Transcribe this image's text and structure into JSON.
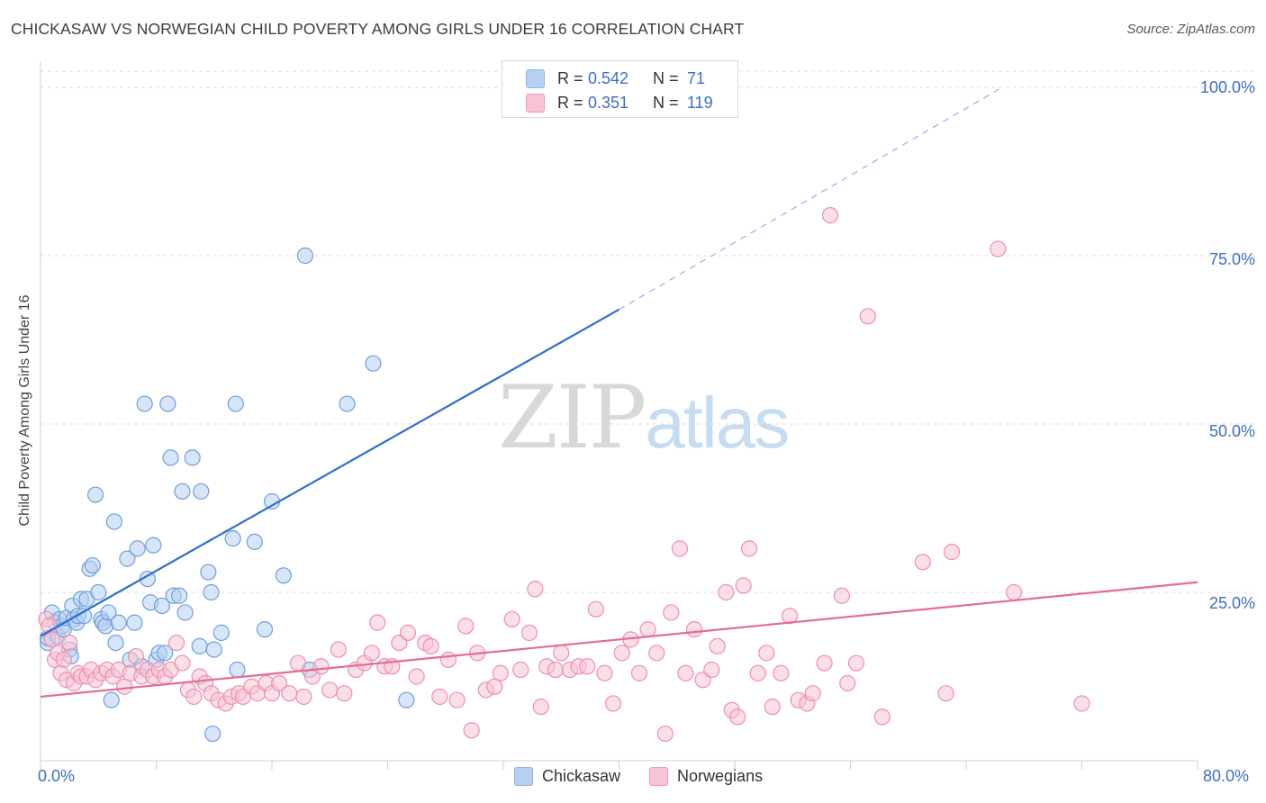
{
  "title": "CHICKASAW VS NORWEGIAN CHILD POVERTY AMONG GIRLS UNDER 16 CORRELATION CHART",
  "source": "Source: ZipAtlas.com",
  "watermark": {
    "part1": "ZIP",
    "part2": "atlas"
  },
  "legend": {
    "rows": [
      {
        "r_label": "R =",
        "r_value": "0.542",
        "n_label": "N =",
        "n_value": "71",
        "color": "#a9c8f0"
      },
      {
        "r_label": "R =",
        "r_value": "0.351",
        "n_label": "N =",
        "n_value": "119",
        "color": "#f6b8cc"
      }
    ]
  },
  "chart_data": {
    "type": "scatter",
    "title": "CHICKASAW VS NORWEGIAN CHILD POVERTY AMONG GIRLS UNDER 16 CORRELATION CHART",
    "xlabel": "",
    "ylabel": "Child Poverty Among Girls Under 16",
    "xlim": [
      0,
      80
    ],
    "ylim": [
      0,
      100
    ],
    "x_tick_labels": [
      "0.0%",
      "80.0%"
    ],
    "y_tick_labels": [
      "25.0%",
      "50.0%",
      "75.0%",
      "100.0%"
    ],
    "y_ticks": [
      25,
      50,
      75,
      100
    ],
    "grid": "horizontal dashed",
    "legend_position": "bottom-center",
    "series": [
      {
        "name": "Chickasaw",
        "color": "#6e9fdf",
        "fill": "#b6d0f2",
        "trend": {
          "x0": 0,
          "y0": 18.5,
          "x1": 40,
          "y1": 67.0,
          "dash_to_x": 66.5,
          "dash_to_y": 100
        },
        "points": [
          [
            0.5,
            17.5
          ],
          [
            0.5,
            18.2
          ],
          [
            0.8,
            22
          ],
          [
            1.0,
            20.5
          ],
          [
            1.2,
            18.5
          ],
          [
            1.3,
            21
          ],
          [
            1.5,
            20
          ],
          [
            1.6,
            19.5
          ],
          [
            1.8,
            21.2
          ],
          [
            2.0,
            16.5
          ],
          [
            2.1,
            15.5
          ],
          [
            2.2,
            23
          ],
          [
            2.3,
            21
          ],
          [
            2.5,
            20.5
          ],
          [
            2.6,
            21.5
          ],
          [
            2.8,
            24
          ],
          [
            3.0,
            21.5
          ],
          [
            3.2,
            24
          ],
          [
            3.4,
            28.5
          ],
          [
            3.6,
            29
          ],
          [
            3.8,
            39.5
          ],
          [
            4.0,
            25
          ],
          [
            4.2,
            21
          ],
          [
            4.3,
            20.5
          ],
          [
            4.5,
            20
          ],
          [
            4.7,
            22
          ],
          [
            4.9,
            9
          ],
          [
            5.1,
            35.5
          ],
          [
            5.2,
            17.5
          ],
          [
            5.4,
            20.5
          ],
          [
            6.0,
            30
          ],
          [
            6.2,
            15
          ],
          [
            6.5,
            20.5
          ],
          [
            6.7,
            31.5
          ],
          [
            7.0,
            14
          ],
          [
            7.2,
            53
          ],
          [
            7.4,
            27
          ],
          [
            7.6,
            23.5
          ],
          [
            7.8,
            32
          ],
          [
            8.0,
            15
          ],
          [
            8.2,
            16
          ],
          [
            8.4,
            23
          ],
          [
            8.6,
            16
          ],
          [
            8.8,
            53
          ],
          [
            9.0,
            45
          ],
          [
            9.2,
            24.5
          ],
          [
            9.6,
            24.5
          ],
          [
            9.8,
            40
          ],
          [
            10.0,
            22
          ],
          [
            10.5,
            45
          ],
          [
            11.0,
            17
          ],
          [
            11.1,
            40
          ],
          [
            11.6,
            28
          ],
          [
            11.8,
            25
          ],
          [
            11.9,
            4
          ],
          [
            12.0,
            16.5
          ],
          [
            12.5,
            19
          ],
          [
            13.3,
            33
          ],
          [
            13.5,
            53
          ],
          [
            13.6,
            13.5
          ],
          [
            14.8,
            32.5
          ],
          [
            15.5,
            19.5
          ],
          [
            16.0,
            38.5
          ],
          [
            16.8,
            27.5
          ],
          [
            18.3,
            75
          ],
          [
            18.6,
            13.5
          ],
          [
            21.2,
            53
          ],
          [
            23.0,
            59
          ],
          [
            25.3,
            9
          ]
        ]
      },
      {
        "name": "Norwegians",
        "color": "#ee8fae",
        "fill": "#f8c4d4",
        "trend": {
          "x0": 0,
          "y0": 9.5,
          "x1": 80,
          "y1": 26.5
        },
        "points": [
          [
            0.4,
            21
          ],
          [
            0.6,
            20
          ],
          [
            0.8,
            18
          ],
          [
            1.0,
            15
          ],
          [
            1.2,
            16
          ],
          [
            1.4,
            13
          ],
          [
            1.6,
            15
          ],
          [
            1.8,
            12
          ],
          [
            2.0,
            17.5
          ],
          [
            2.3,
            11.5
          ],
          [
            2.6,
            13
          ],
          [
            2.8,
            12.5
          ],
          [
            3.2,
            12.5
          ],
          [
            3.5,
            13.5
          ],
          [
            3.8,
            12
          ],
          [
            4.2,
            13
          ],
          [
            4.6,
            13.5
          ],
          [
            5.0,
            12.5
          ],
          [
            5.4,
            13.5
          ],
          [
            5.8,
            11
          ],
          [
            6.2,
            13
          ],
          [
            6.6,
            15.5
          ],
          [
            7.0,
            12.5
          ],
          [
            7.4,
            13.5
          ],
          [
            7.8,
            12.5
          ],
          [
            8.2,
            13.5
          ],
          [
            8.6,
            12.5
          ],
          [
            9.0,
            13.5
          ],
          [
            9.4,
            17.5
          ],
          [
            9.8,
            14.5
          ],
          [
            10.2,
            10.5
          ],
          [
            10.6,
            9.5
          ],
          [
            11.0,
            12.5
          ],
          [
            11.4,
            11.5
          ],
          [
            11.8,
            10
          ],
          [
            12.3,
            9
          ],
          [
            12.8,
            8.5
          ],
          [
            13.2,
            9.5
          ],
          [
            13.7,
            10
          ],
          [
            14.0,
            9.5
          ],
          [
            14.6,
            11
          ],
          [
            15.0,
            10
          ],
          [
            15.6,
            11.5
          ],
          [
            16.0,
            10
          ],
          [
            16.5,
            11.5
          ],
          [
            17.2,
            10
          ],
          [
            17.8,
            14.5
          ],
          [
            18.2,
            9.5
          ],
          [
            18.8,
            12.5
          ],
          [
            19.4,
            14
          ],
          [
            20.0,
            10.5
          ],
          [
            20.6,
            16.5
          ],
          [
            21.0,
            10
          ],
          [
            21.8,
            13.5
          ],
          [
            22.4,
            14.5
          ],
          [
            22.9,
            16
          ],
          [
            23.3,
            20.5
          ],
          [
            23.8,
            14
          ],
          [
            24.3,
            14
          ],
          [
            24.8,
            17.5
          ],
          [
            25.4,
            19
          ],
          [
            26.0,
            12.5
          ],
          [
            26.6,
            17.5
          ],
          [
            27.0,
            17
          ],
          [
            27.6,
            9.5
          ],
          [
            28.2,
            15
          ],
          [
            28.8,
            9
          ],
          [
            29.4,
            20
          ],
          [
            29.8,
            4.5
          ],
          [
            30.2,
            16
          ],
          [
            30.8,
            10.5
          ],
          [
            31.4,
            11
          ],
          [
            31.8,
            13
          ],
          [
            32.6,
            21
          ],
          [
            33.2,
            13.5
          ],
          [
            33.8,
            19
          ],
          [
            34.2,
            25.5
          ],
          [
            34.6,
            8
          ],
          [
            35.0,
            14
          ],
          [
            35.6,
            13.5
          ],
          [
            36.0,
            16
          ],
          [
            36.6,
            13.5
          ],
          [
            37.2,
            14
          ],
          [
            37.8,
            14
          ],
          [
            38.4,
            22.5
          ],
          [
            39.0,
            13
          ],
          [
            39.6,
            8.5
          ],
          [
            40.2,
            16
          ],
          [
            40.8,
            18
          ],
          [
            41.4,
            13
          ],
          [
            42.0,
            19.5
          ],
          [
            42.6,
            16
          ],
          [
            43.2,
            4
          ],
          [
            43.6,
            22
          ],
          [
            44.2,
            31.5
          ],
          [
            44.6,
            13
          ],
          [
            45.2,
            19.5
          ],
          [
            45.8,
            12
          ],
          [
            46.4,
            13.5
          ],
          [
            46.8,
            17
          ],
          [
            47.4,
            25
          ],
          [
            47.8,
            7.5
          ],
          [
            48.2,
            6.5
          ],
          [
            48.6,
            26
          ],
          [
            49.0,
            31.5
          ],
          [
            49.6,
            13
          ],
          [
            50.2,
            16
          ],
          [
            50.6,
            8
          ],
          [
            51.2,
            13
          ],
          [
            51.8,
            21.5
          ],
          [
            52.4,
            9
          ],
          [
            53.0,
            8.5
          ],
          [
            53.4,
            10
          ],
          [
            54.2,
            14.5
          ],
          [
            54.6,
            81
          ],
          [
            55.4,
            24.5
          ],
          [
            55.8,
            11.5
          ],
          [
            56.4,
            14.5
          ],
          [
            58.2,
            6.5
          ],
          [
            57.2,
            66
          ],
          [
            61.0,
            29.5
          ],
          [
            62.6,
            10
          ],
          [
            63.0,
            31
          ],
          [
            66.2,
            76
          ],
          [
            67.3,
            25
          ],
          [
            72.0,
            8.5
          ]
        ]
      }
    ]
  }
}
